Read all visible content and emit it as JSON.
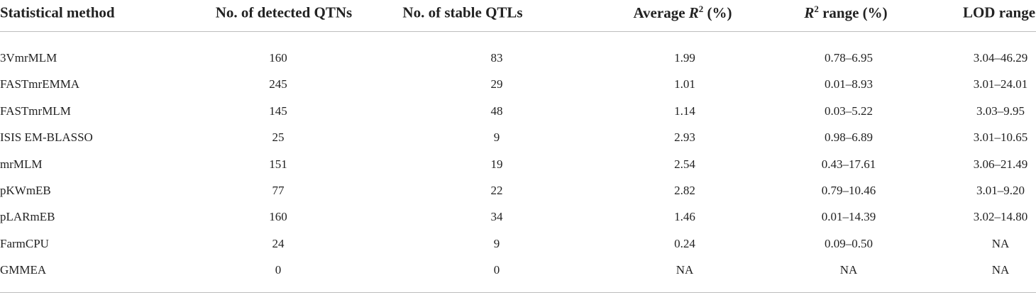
{
  "table": {
    "headers": [
      "Statistical method",
      "No. of detected QTNs",
      "No. of stable QTLs",
      {
        "lead": "Average ",
        "symbol": "R",
        "sup": "2",
        "rest": " (%)"
      },
      {
        "symbol": "R",
        "sup": "2",
        "rest": " range (%)"
      },
      "LOD range"
    ],
    "rows": [
      [
        "3VmrMLM",
        "160",
        "83",
        "1.99",
        "0.78–6.95",
        "3.04–46.29"
      ],
      [
        "FASTmrEMMA",
        "245",
        "29",
        "1.01",
        "0.01–8.93",
        "3.01–24.01"
      ],
      [
        "FASTmrMLM",
        "145",
        "48",
        "1.14",
        "0.03–5.22",
        "3.03–9.95"
      ],
      [
        "ISIS EM-BLASSO",
        "25",
        "9",
        "2.93",
        "0.98–6.89",
        "3.01–10.65"
      ],
      [
        "mrMLM",
        "151",
        "19",
        "2.54",
        "0.43–17.61",
        "3.06–21.49"
      ],
      [
        "pKWmEB",
        "77",
        "22",
        "2.82",
        "0.79–10.46",
        "3.01–9.20"
      ],
      [
        "pLARmEB",
        "160",
        "34",
        "1.46",
        "0.01–14.39",
        "3.02–14.80"
      ],
      [
        "FarmCPU",
        "24",
        "9",
        "0.24",
        "0.09–0.50",
        "NA"
      ],
      [
        "GMMEA",
        "0",
        "0",
        "NA",
        "NA",
        "NA"
      ]
    ]
  }
}
